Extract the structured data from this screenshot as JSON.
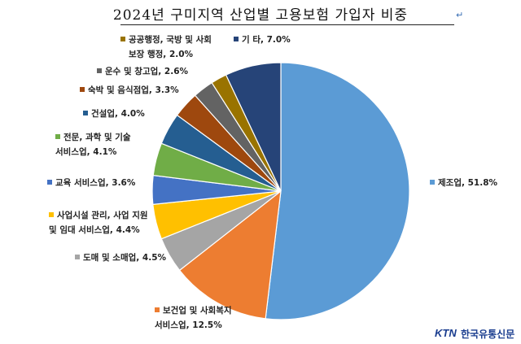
{
  "title": "2024년 구미지역 산업별 고용보험 가입자 비중",
  "brand": {
    "mark": "KTN",
    "name": "한국유통신문",
    "color": "#1a3d8f"
  },
  "chart_data": {
    "type": "pie",
    "title": "2024년 구미지역 산업별 고용보험 가입자 비중",
    "unit": "%",
    "slices": [
      {
        "name": "제조업",
        "value": 51.8,
        "color": "#5b9bd5",
        "label": [
          "제조업, 51.8%"
        ]
      },
      {
        "name": "보건업 및 사회복지 서비스업",
        "value": 12.5,
        "color": "#ed7d31",
        "label": [
          "보건업 및 사회복지",
          "서비스업, 12.5%"
        ]
      },
      {
        "name": "도매 및 소매업",
        "value": 4.5,
        "color": "#a5a5a5",
        "label": [
          "도매 및 소매업, 4.5%"
        ]
      },
      {
        "name": "사업시설 관리, 사업 지원 및 임대 서비스업",
        "value": 4.4,
        "color": "#ffc000",
        "label": [
          "사업시설 관리, 사업 지원",
          "및 임대 서비스업, 4.4%"
        ]
      },
      {
        "name": "교육 서비스업",
        "value": 3.6,
        "color": "#4472c4",
        "label": [
          "교육 서비스업, 3.6%"
        ]
      },
      {
        "name": "전문, 과학 및 기술 서비스업",
        "value": 4.1,
        "color": "#70ad47",
        "label": [
          "전문, 과학 및 기술",
          "서비스업, 4.1%"
        ]
      },
      {
        "name": "건설업",
        "value": 4.0,
        "color": "#255e91",
        "label": [
          "건설업, 4.0%"
        ]
      },
      {
        "name": "숙박 및 음식점업",
        "value": 3.3,
        "color": "#9e480e",
        "label": [
          "숙박 및 음식점업, 3.3%"
        ]
      },
      {
        "name": "운수 및 창고업",
        "value": 2.6,
        "color": "#636363",
        "label": [
          "운수 및 창고업, 2.6%"
        ]
      },
      {
        "name": "공공행정, 국방 및 사회보장 행정",
        "value": 2.0,
        "color": "#997300",
        "label": [
          "공공행정, 국방 및 사회",
          "보장 행정, 2.0%"
        ]
      },
      {
        "name": "기타",
        "value": 7.0,
        "color": "#264478",
        "label": [
          "기 타, 7.0%"
        ]
      }
    ]
  }
}
